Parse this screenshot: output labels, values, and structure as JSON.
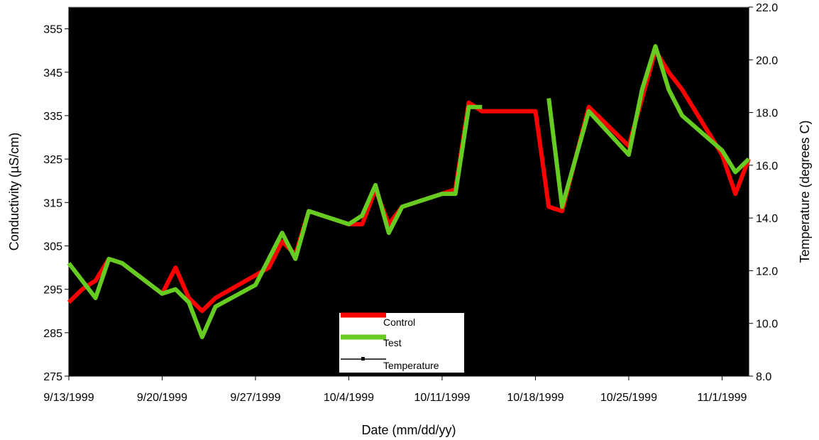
{
  "chart_data": {
    "type": "line",
    "title": "",
    "xlabel": "Date (mm/dd/yy)",
    "ylabel": "Conductivity (µS/cm)",
    "y2label": "Temperature (degrees C)",
    "x_ticks": [
      "9/13/1999",
      "9/20/1999",
      "9/27/1999",
      "10/4/1999",
      "10/11/1999",
      "10/18/1999",
      "10/25/1999",
      "11/1/1999"
    ],
    "xlim": [
      "9/13/1999",
      "11/3/1999"
    ],
    "ylim": [
      275,
      360
    ],
    "y_ticks": [
      275,
      285,
      295,
      305,
      315,
      325,
      335,
      345,
      355
    ],
    "y2lim": [
      8.0,
      22.0
    ],
    "y2_ticks": [
      "8.0",
      "10.0",
      "12.0",
      "14.0",
      "16.0",
      "18.0",
      "20.0",
      "22.0"
    ],
    "background": "#000000",
    "grid": false,
    "legend_position": "bottom-center",
    "series": [
      {
        "name": "Control",
        "axis": "left",
        "color": "#ff0000",
        "points": [
          [
            "9/13/1999",
            292
          ],
          [
            "9/14/1999",
            295
          ],
          [
            "9/15/1999",
            297
          ],
          [
            "9/16/1999",
            302
          ],
          [
            "9/17/1999",
            301
          ],
          [
            "9/20/1999",
            294
          ],
          [
            "9/21/1999",
            300
          ],
          [
            "9/22/1999",
            293
          ],
          [
            "9/23/1999",
            290
          ],
          [
            "9/24/1999",
            293
          ],
          [
            "9/28/1999",
            300
          ],
          [
            "9/29/1999",
            306
          ],
          [
            "9/30/1999",
            303
          ],
          [
            "10/1/1999",
            313
          ],
          [
            "10/4/1999",
            310
          ],
          [
            "10/5/1999",
            310
          ],
          [
            "10/6/1999",
            318
          ],
          [
            "10/7/1999",
            310
          ],
          [
            "10/8/1999",
            314
          ],
          [
            "10/12/1999",
            318
          ],
          [
            "10/13/1999",
            338
          ],
          [
            "10/14/1999",
            336
          ],
          [
            "10/15/1999",
            336
          ],
          [
            "10/18/1999",
            336
          ],
          [
            "10/19/1999",
            314
          ],
          [
            "10/20/1999",
            313
          ],
          [
            "10/22/1999",
            337
          ],
          [
            "10/25/1999",
            328
          ],
          [
            "10/27/1999",
            350
          ],
          [
            "10/28/1999",
            345
          ],
          [
            "10/29/1999",
            341
          ],
          [
            "11/1/1999",
            326
          ],
          [
            "11/2/1999",
            317
          ],
          [
            "11/3/1999",
            325
          ]
        ]
      },
      {
        "name": "Test",
        "axis": "left",
        "color": "#66cc22",
        "segments": [
          [
            [
              "9/13/1999",
              301
            ],
            [
              "9/15/1999",
              293
            ],
            [
              "9/16/1999",
              302
            ],
            [
              "9/17/1999",
              301
            ],
            [
              "9/20/1999",
              294
            ],
            [
              "9/21/1999",
              295
            ],
            [
              "9/22/1999",
              292
            ],
            [
              "9/23/1999",
              284
            ],
            [
              "9/24/1999",
              291
            ],
            [
              "9/27/1999",
              296
            ],
            [
              "9/29/1999",
              308
            ],
            [
              "9/30/1999",
              302
            ],
            [
              "10/1/1999",
              313
            ],
            [
              "10/4/1999",
              310
            ],
            [
              "10/5/1999",
              312
            ],
            [
              "10/6/1999",
              319
            ],
            [
              "10/7/1999",
              308
            ],
            [
              "10/8/1999",
              314
            ],
            [
              "10/11/1999",
              317
            ],
            [
              "10/12/1999",
              317
            ],
            [
              "10/13/1999",
              337
            ],
            [
              "10/14/1999",
              337
            ]
          ],
          [
            [
              "10/19/1999",
              339
            ],
            [
              "10/20/1999",
              314
            ],
            [
              "10/22/1999",
              336
            ],
            [
              "10/25/1999",
              326
            ],
            [
              "10/26/1999",
              341
            ],
            [
              "10/27/1999",
              351
            ],
            [
              "10/28/1999",
              341
            ],
            [
              "10/29/1999",
              335
            ],
            [
              "11/1/1999",
              327
            ],
            [
              "11/2/1999",
              322
            ],
            [
              "11/3/1999",
              325
            ]
          ]
        ]
      },
      {
        "name": "Temperature",
        "axis": "right",
        "color": "#000000",
        "points": []
      }
    ]
  }
}
